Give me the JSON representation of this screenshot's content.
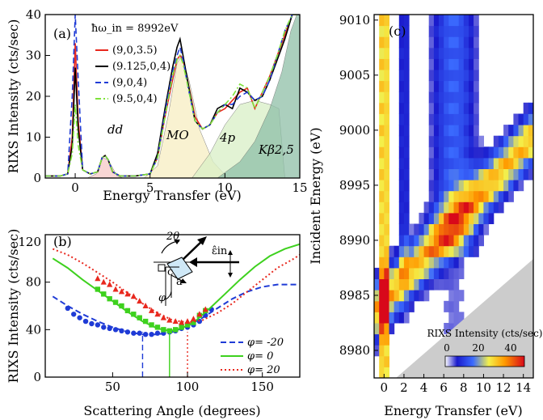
{
  "chart_data": [
    {
      "panel": "(a)",
      "type": "line",
      "annotation": "ħω_in = 8992eV",
      "xlabel": "Energy Transfer (eV)",
      "ylabel": "RIXS Intensity (cts/sec)",
      "xlim": [
        -2,
        15
      ],
      "ylim": [
        0,
        40
      ],
      "xticks": [
        0,
        5,
        10,
        15
      ],
      "yticks": [
        0,
        10,
        20,
        30,
        40
      ],
      "region_labels": [
        "dd",
        "MO",
        "4p",
        "Kβ2,5"
      ],
      "series": [
        {
          "name": "(9,0,3.5)",
          "color": "#e8281e",
          "dash": "solid",
          "x": [
            -2,
            -1,
            -0.5,
            -0.2,
            0,
            0.2,
            0.5,
            1,
            1.5,
            1.8,
            2,
            2.2,
            2.5,
            3,
            4,
            5,
            5.5,
            6,
            6.5,
            6.8,
            7,
            7.2,
            7.5,
            8,
            8.5,
            9,
            9.5,
            10,
            10.5,
            11,
            11.5,
            12,
            12.5,
            13,
            13.5,
            14,
            14.5,
            15
          ],
          "y": [
            0.5,
            0.5,
            1,
            10,
            33,
            14,
            2,
            1,
            1.5,
            5,
            5.5,
            4.5,
            1.5,
            0.5,
            0.5,
            1,
            5,
            15,
            24,
            29,
            30,
            29,
            24,
            15,
            12,
            13,
            16,
            17,
            19,
            21,
            22,
            17,
            21,
            25,
            30,
            35,
            40,
            40
          ]
        },
        {
          "name": "(9.125,0,4)",
          "color": "#000000",
          "dash": "solid",
          "x": [
            -2,
            -1,
            -0.5,
            -0.2,
            0,
            0.2,
            0.5,
            1,
            1.5,
            1.8,
            2,
            2.2,
            2.5,
            3,
            4,
            5,
            5.5,
            6,
            6.5,
            6.8,
            7,
            7.2,
            7.5,
            8,
            8.5,
            9,
            9.5,
            10,
            10.5,
            11,
            11.5,
            12,
            12.5,
            13,
            13.5,
            14,
            14.5,
            15
          ],
          "y": [
            0.5,
            0.5,
            1,
            8,
            27,
            12,
            2,
            1,
            1.5,
            5,
            5.5,
            4.5,
            1.5,
            0.5,
            0.5,
            1,
            6,
            17,
            27,
            32,
            34,
            30,
            24,
            14,
            12,
            13,
            17,
            18,
            17,
            22,
            21,
            19,
            20,
            24,
            29,
            34,
            40,
            40
          ]
        },
        {
          "name": "(9,0,4)",
          "color": "#1f3bd6",
          "dash": "dashed",
          "x": [
            -2,
            -1,
            -0.5,
            -0.2,
            0,
            0.2,
            0.5,
            1,
            1.5,
            1.8,
            2,
            2.2,
            2.5,
            3,
            4,
            5,
            5.5,
            6,
            6.5,
            6.8,
            7,
            7.2,
            7.5,
            8,
            8.5,
            9,
            9.5,
            10,
            10.5,
            11,
            11.5,
            12,
            12.5,
            13,
            13.5,
            14,
            14.5,
            15
          ],
          "y": [
            0.5,
            0.5,
            1,
            20,
            40,
            24,
            2,
            1,
            1.5,
            5,
            5.5,
            4.5,
            1.5,
            0.5,
            0.5,
            1,
            5,
            16,
            26,
            30,
            32,
            29,
            23,
            14,
            12,
            13,
            16,
            18,
            18,
            20,
            21,
            19,
            20,
            24,
            30,
            36,
            40,
            40
          ]
        },
        {
          "name": "(9.5,0,4)",
          "color": "#7ee23a",
          "dash": "dashdot",
          "x": [
            -2,
            -1,
            -0.5,
            -0.2,
            0,
            0.2,
            0.5,
            1,
            1.5,
            1.8,
            2,
            2.2,
            2.5,
            3,
            4,
            5,
            5.5,
            6,
            6.5,
            6.8,
            7,
            7.2,
            7.5,
            8,
            8.5,
            9,
            9.5,
            10,
            10.5,
            11,
            11.5,
            12,
            12.5,
            13,
            13.5,
            14,
            14.5,
            15
          ],
          "y": [
            0.5,
            0.5,
            1,
            6,
            18,
            8,
            2,
            1,
            1.5,
            5,
            5.5,
            4.5,
            1.5,
            0.5,
            0.5,
            1,
            5,
            15,
            25,
            29,
            30,
            28,
            23,
            14,
            12,
            13,
            16,
            18,
            20,
            23,
            22,
            17,
            21,
            25,
            30,
            36,
            40,
            40
          ]
        }
      ]
    },
    {
      "panel": "(b)",
      "type": "scatter",
      "xlabel": "Scattering Angle (degrees)",
      "ylabel": "RIXS Intensity (cts/sec)",
      "xlim": [
        5,
        175
      ],
      "ylim": [
        0,
        120
      ],
      "xticks": [
        50,
        100,
        150
      ],
      "yticks": [
        0,
        40,
        80
      ],
      "extra_ytick": 120,
      "inset_labels": {
        "two_theta": "2θ",
        "epsilon": "ε̂in",
        "c": "c",
        "a": "a",
        "phi": "φ"
      },
      "series": [
        {
          "name": "φ= -20",
          "color": "#1f3bd6",
          "dash": "dashed",
          "fit_x": [
            10,
            20,
            30,
            40,
            50,
            60,
            70,
            80,
            90,
            100,
            110,
            120,
            130,
            140,
            150,
            160,
            170,
            175
          ],
          "fit_y": [
            68,
            60,
            53,
            47,
            42,
            38,
            36,
            36,
            38,
            43,
            50,
            58,
            66,
            72,
            76,
            78,
            78,
            78
          ],
          "points_x": [
            20,
            24,
            28,
            32,
            36,
            40,
            44,
            48,
            52,
            56,
            60,
            64,
            68,
            72,
            76,
            80,
            84,
            88,
            92,
            96,
            100,
            104,
            108,
            112,
            116
          ],
          "points_y": [
            58,
            53,
            50,
            47,
            45,
            44,
            42,
            41,
            40,
            39,
            38,
            37,
            37,
            36,
            36,
            37,
            37,
            38,
            39,
            41,
            42,
            44,
            47,
            52,
            57
          ],
          "marker": "circle",
          "min_angle": 70
        },
        {
          "name": "φ=  0",
          "color": "#3ed11e",
          "dash": "solid",
          "fit_x": [
            10,
            20,
            30,
            40,
            50,
            60,
            70,
            80,
            88,
            96,
            105,
            115,
            125,
            135,
            145,
            155,
            165,
            175
          ],
          "fit_y": [
            100,
            92,
            82,
            73,
            64,
            55,
            47,
            41,
            39,
            41,
            47,
            58,
            70,
            82,
            93,
            102,
            108,
            112
          ],
          "points_x": [
            40,
            44,
            48,
            52,
            56,
            60,
            64,
            68,
            72,
            76,
            80,
            84,
            88,
            92,
            96,
            100,
            104,
            108,
            112
          ],
          "points_y": [
            74,
            70,
            66,
            63,
            60,
            56,
            53,
            50,
            47,
            44,
            42,
            40,
            39,
            40,
            42,
            44,
            46,
            52,
            56
          ],
          "marker": "square",
          "min_angle": 88
        },
        {
          "name": "φ= 20",
          "color": "#e8281e",
          "dash": "dotted",
          "fit_x": [
            10,
            20,
            30,
            40,
            50,
            60,
            70,
            80,
            90,
            100,
            110,
            120,
            130,
            140,
            150,
            160,
            170,
            175
          ],
          "fit_y": [
            108,
            103,
            96,
            88,
            80,
            71,
            62,
            54,
            48,
            46,
            48,
            54,
            62,
            72,
            82,
            92,
            99,
            103
          ],
          "points_x": [
            40,
            44,
            48,
            52,
            56,
            60,
            64,
            68,
            72,
            76,
            80,
            84,
            88,
            92,
            96,
            100,
            104,
            108,
            112
          ],
          "points_y": [
            83,
            80,
            78,
            74,
            72,
            70,
            68,
            64,
            60,
            56,
            53,
            50,
            48,
            47,
            46,
            47,
            49,
            53,
            57
          ],
          "marker": "triangle",
          "min_angle": 100
        }
      ]
    },
    {
      "panel": "(c)",
      "type": "heatmap",
      "xlabel": "Energy Transfer (eV)",
      "ylabel": "Incident Energy (eV)",
      "xlim": [
        -1,
        15
      ],
      "ylim": [
        8977.5,
        9010.5
      ],
      "xticks": [
        0,
        2,
        4,
        6,
        8,
        10,
        12,
        14
      ],
      "yticks": [
        8980,
        8985,
        8990,
        8995,
        9000,
        9005,
        9010
      ],
      "colorbar": {
        "title": "RIXS Intensity (cts/sec)",
        "ticks": [
          0,
          20,
          40
        ],
        "range": [
          0,
          50
        ]
      }
    }
  ]
}
